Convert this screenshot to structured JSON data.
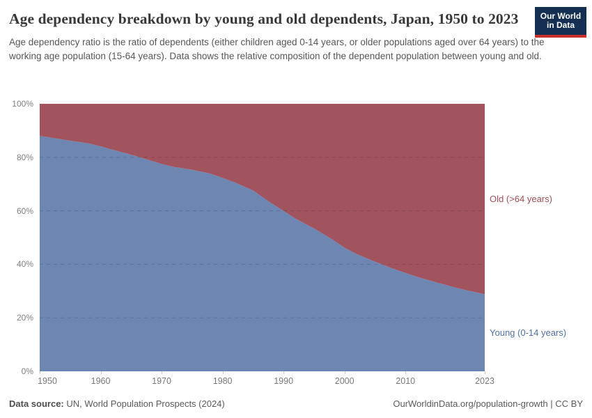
{
  "header": {
    "title": "Age dependency breakdown by young and old dependents, Japan, 1950 to 2023",
    "subtitle": "Age dependency ratio is the ratio of dependents (either children aged 0-14 years, or older populations aged over 64 years) to the working age population (15-64 years). Data shows the relative composition of the dependent population between young and old.",
    "logo": {
      "line1": "Our World",
      "line2": "in Data",
      "bg_color": "#142f52",
      "bar_color": "#c7312b"
    }
  },
  "chart_data": {
    "type": "area",
    "stacking": "percent",
    "title": "Age dependency breakdown by young and old dependents, Japan, 1950 to 2023",
    "x": [
      1950,
      1952,
      1955,
      1958,
      1960,
      1962,
      1965,
      1968,
      1970,
      1972,
      1975,
      1978,
      1980,
      1982,
      1985,
      1988,
      1990,
      1992,
      1995,
      1998,
      2000,
      2002,
      2005,
      2008,
      2010,
      2012,
      2015,
      2018,
      2020,
      2023
    ],
    "series": [
      {
        "name": "Young (0-14 years)",
        "color": "#6e86b2",
        "label_color": "#5071a6",
        "values": [
          88.0,
          87.3,
          86.2,
          85.2,
          84.1,
          82.8,
          81.0,
          78.9,
          77.5,
          76.4,
          75.3,
          73.9,
          72.3,
          70.6,
          67.6,
          62.8,
          60.0,
          57.0,
          53.4,
          49.3,
          46.2,
          43.8,
          41.0,
          38.3,
          36.8,
          35.2,
          33.3,
          31.4,
          30.3,
          28.8
        ]
      },
      {
        "name": "Old (>64 years)",
        "color": "#a1535e",
        "label_color": "#a04e58",
        "values": [
          12.0,
          12.7,
          13.8,
          14.8,
          15.9,
          17.2,
          19.0,
          21.1,
          22.5,
          23.6,
          24.7,
          26.1,
          27.7,
          29.4,
          32.4,
          37.2,
          40.0,
          43.0,
          46.6,
          50.7,
          53.8,
          56.2,
          59.0,
          61.7,
          63.2,
          64.8,
          66.7,
          68.6,
          69.7,
          71.2
        ]
      }
    ],
    "ylim": [
      0,
      100
    ],
    "yticks": {
      "values": [
        0,
        20,
        40,
        60,
        80,
        100
      ],
      "labels": [
        "0%",
        "20%",
        "40%",
        "60%",
        "80%",
        "100%"
      ]
    },
    "xticks": {
      "values": [
        1950,
        1960,
        1970,
        1980,
        1990,
        2000,
        2010,
        2023
      ],
      "labels": [
        "1950",
        "1960",
        "1970",
        "1980",
        "1990",
        "2000",
        "2010",
        "2023"
      ]
    },
    "grid": "horizontal-dashed",
    "grid_color": "rgba(0,0,0,0.15)",
    "legend_position": "right-of-plot"
  },
  "footer": {
    "source_label": "Data source:",
    "source_value": "UN, World Population Prospects (2024)",
    "credit": "OurWorldinData.org/population-growth | CC BY"
  }
}
